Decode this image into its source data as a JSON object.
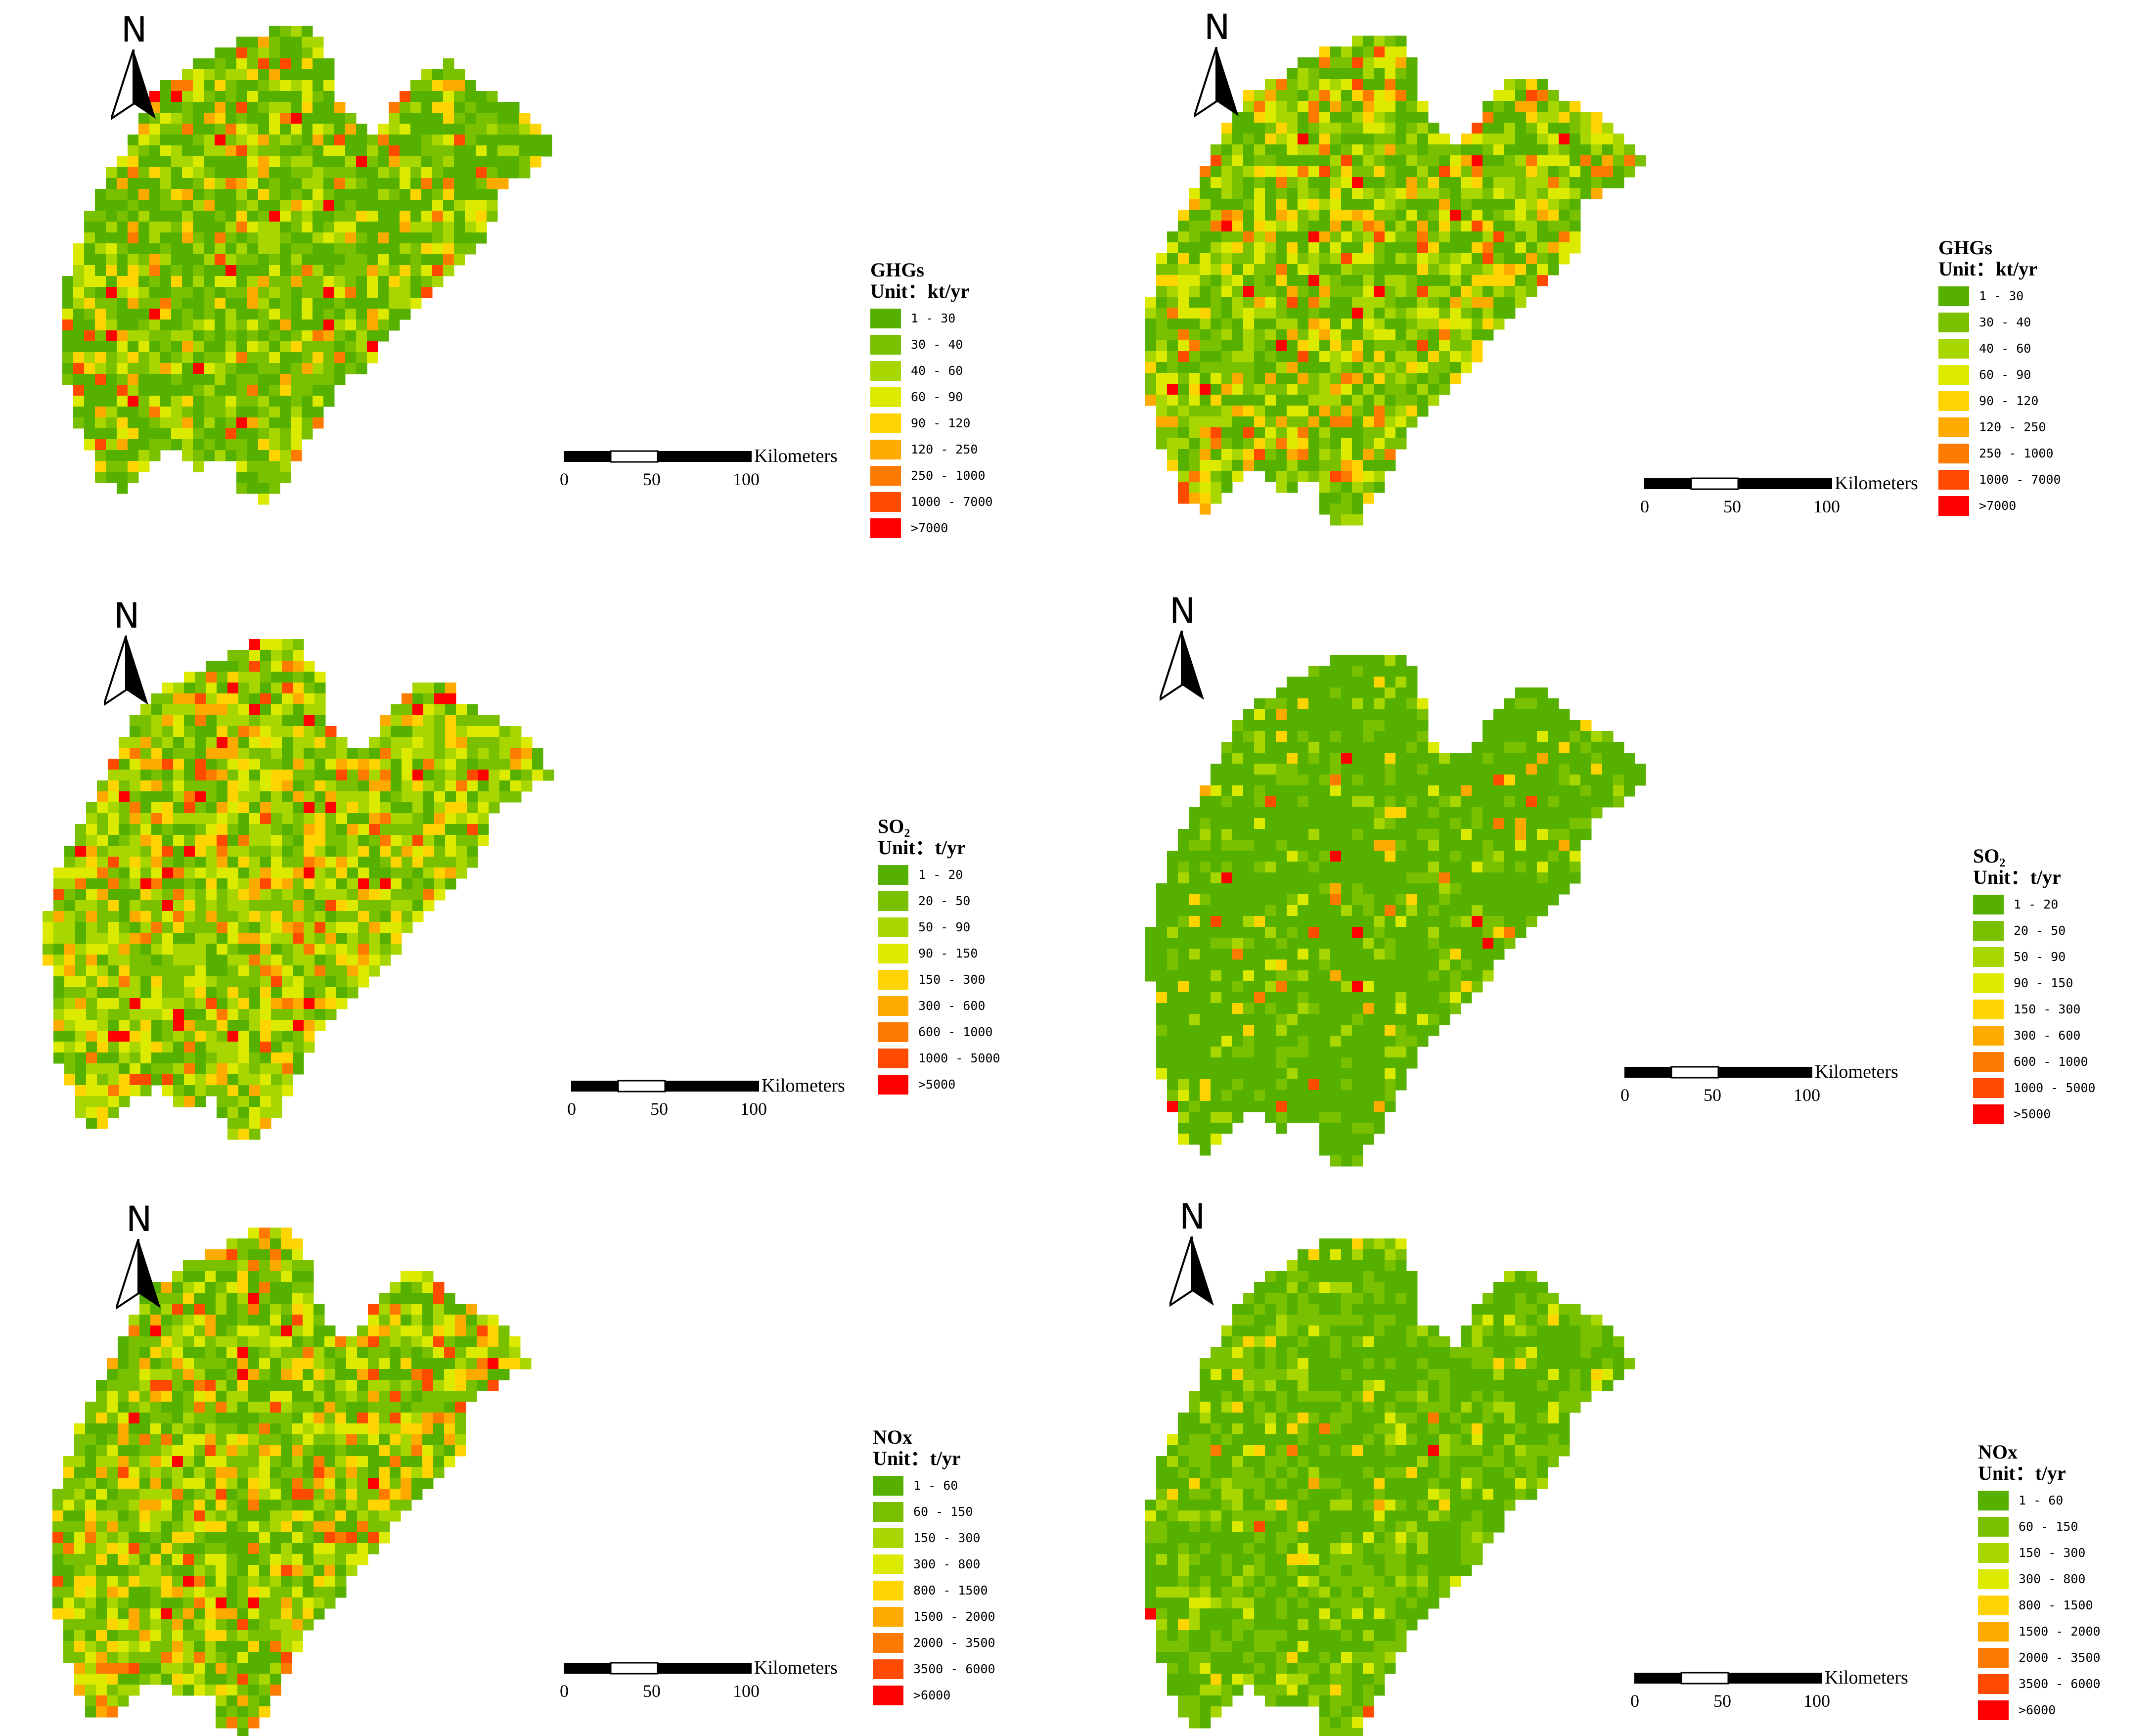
{
  "map": {
    "north_label": "N",
    "scale": {
      "unit": "Kilometers",
      "ticks": [
        "0",
        "50",
        "100"
      ]
    },
    "panels": [
      {
        "id": "ghg-left",
        "title": "GHGs",
        "unit": "Unit：kt/yr",
        "classes": [
          "1 - 30",
          "30 - 40",
          "40 - 60",
          "60 - 90",
          "90 - 120",
          "120 - 250",
          "250 - 1000",
          "1000 - 7000",
          ">7000"
        ],
        "palette": [
          "#56b000",
          "#78c000",
          "#a8d600",
          "#dcea00",
          "#ffd400",
          "#ffaa00",
          "#ff7a00",
          "#ff4a00",
          "#ff0000"
        ],
        "weights": [
          0.42,
          0.22,
          0.14,
          0.09,
          0.05,
          0.04,
          0.02,
          0.015,
          0.015
        ]
      },
      {
        "id": "ghg-right",
        "title": "GHGs",
        "unit": "Unit：kt/yr",
        "classes": [
          "1 - 30",
          "30 - 40",
          "40 - 60",
          "60 - 90",
          "90 - 120",
          "120 - 250",
          "250 - 1000",
          "1000 - 7000",
          ">7000"
        ],
        "palette": [
          "#56b000",
          "#78c000",
          "#a8d600",
          "#dcea00",
          "#ffd400",
          "#ffaa00",
          "#ff7a00",
          "#ff4a00",
          "#ff0000"
        ],
        "weights": [
          0.3,
          0.22,
          0.18,
          0.12,
          0.07,
          0.05,
          0.03,
          0.02,
          0.01
        ]
      },
      {
        "id": "so2-left",
        "title": "SO₂",
        "unit": "Unit：t/yr",
        "classes": [
          "1 - 20",
          "20 - 50",
          "50 - 90",
          "90 - 150",
          "150 - 300",
          "300 - 600",
          "600 - 1000",
          "1000 - 5000",
          ">5000"
        ],
        "palette": [
          "#56b000",
          "#78c000",
          "#a8d600",
          "#dcea00",
          "#ffd400",
          "#ffaa00",
          "#ff7a00",
          "#ff4a00",
          "#ff0000"
        ],
        "weights": [
          0.18,
          0.22,
          0.22,
          0.16,
          0.09,
          0.06,
          0.03,
          0.02,
          0.02
        ]
      },
      {
        "id": "so2-right",
        "title": "SO₂",
        "unit": "Unit：t/yr",
        "classes": [
          "1 - 20",
          "20 - 50",
          "50 - 90",
          "90 - 150",
          "150 - 300",
          "300 - 600",
          "600 - 1000",
          "1000 - 5000",
          ">5000"
        ],
        "palette": [
          "#56b000",
          "#78c000",
          "#a8d600",
          "#dcea00",
          "#ffd400",
          "#ffaa00",
          "#ff7a00",
          "#ff4a00",
          "#ff0000"
        ],
        "weights": [
          0.72,
          0.15,
          0.05,
          0.03,
          0.02,
          0.01,
          0.008,
          0.006,
          0.006
        ]
      },
      {
        "id": "nox-left",
        "title": "NOx",
        "unit": "Unit：t/yr",
        "classes": [
          "1 - 60",
          "60 - 150",
          "150 - 300",
          "300 - 800",
          "800 - 1500",
          "1500 - 2000",
          "2000 - 3500",
          "3500 - 6000",
          ">6000"
        ],
        "palette": [
          "#56b000",
          "#78c000",
          "#a8d600",
          "#dcea00",
          "#ffd400",
          "#ffaa00",
          "#ff7a00",
          "#ff4a00",
          "#ff0000"
        ],
        "weights": [
          0.25,
          0.25,
          0.16,
          0.12,
          0.08,
          0.05,
          0.04,
          0.03,
          0.02
        ]
      },
      {
        "id": "nox-right",
        "title": "NOx",
        "unit": "Unit：t/yr",
        "classes": [
          "1 - 60",
          "60 - 150",
          "150 - 300",
          "300 - 800",
          "800 - 1500",
          "1500 - 2000",
          "2000 - 3500",
          "3500 - 6000",
          ">6000"
        ],
        "palette": [
          "#56b000",
          "#78c000",
          "#a8d600",
          "#dcea00",
          "#ffd400",
          "#ffaa00",
          "#ff7a00",
          "#ff4a00",
          "#ff0000"
        ],
        "weights": [
          0.55,
          0.28,
          0.08,
          0.05,
          0.02,
          0.01,
          0.005,
          0.003,
          0.002
        ]
      }
    ]
  }
}
